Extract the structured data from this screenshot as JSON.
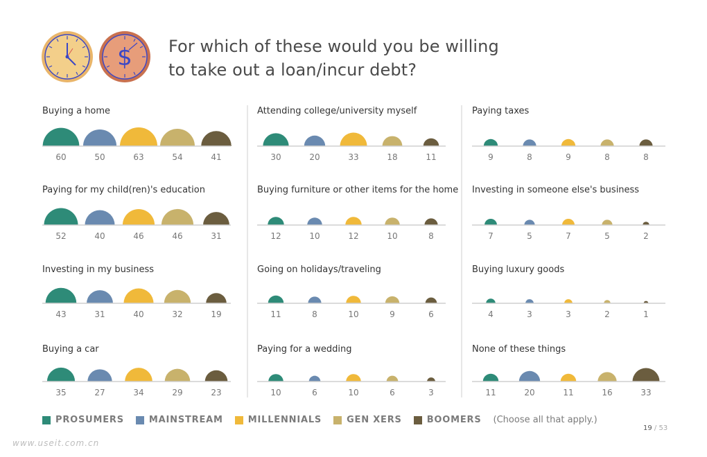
{
  "title": "For which of these would you be willing\nto take out a loan/incur debt?",
  "icons": [
    "clock-icon",
    "dollar-icon"
  ],
  "colors": {
    "prosumers": "#2e8b78",
    "mainstream": "#6a8ab0",
    "millennials": "#f0b93a",
    "genxers": "#c8b26c",
    "boomers": "#6b5d3f",
    "axis": "#cfcfcf"
  },
  "chart_data": {
    "type": "bar",
    "series_names": [
      "PROSUMERS",
      "MAINSTREAM",
      "MILLENNIALS",
      "GEN XERS",
      "BOOMERS"
    ],
    "panels": [
      {
        "title": "Buying a home",
        "values": [
          60,
          50,
          63,
          54,
          41
        ]
      },
      {
        "title": "Paying for my child(ren)'s education",
        "values": [
          52,
          40,
          46,
          46,
          31
        ]
      },
      {
        "title": "Investing in my business",
        "values": [
          43,
          31,
          40,
          32,
          19
        ]
      },
      {
        "title": "Buying a car",
        "values": [
          35,
          27,
          34,
          29,
          23
        ]
      },
      {
        "title": "Attending college/university myself",
        "values": [
          30,
          20,
          33,
          18,
          11
        ]
      },
      {
        "title": "Buying furniture or other items for the home",
        "values": [
          12,
          10,
          12,
          10,
          8
        ]
      },
      {
        "title": "Going on holidays/traveling",
        "values": [
          11,
          8,
          10,
          9,
          6
        ]
      },
      {
        "title": "Paying for a wedding",
        "values": [
          10,
          6,
          10,
          6,
          3
        ]
      },
      {
        "title": "Paying taxes",
        "values": [
          9,
          8,
          9,
          8,
          8
        ]
      },
      {
        "title": "Investing in someone else's business",
        "values": [
          7,
          5,
          7,
          5,
          2
        ]
      },
      {
        "title": "Buying luxury goods",
        "values": [
          4,
          3,
          3,
          2,
          1
        ]
      },
      {
        "title": "None of these things",
        "values": [
          11,
          20,
          11,
          16,
          33
        ]
      }
    ]
  },
  "legend": {
    "items": [
      {
        "label": "PROSUMERS",
        "color_key": "prosumers"
      },
      {
        "label": "MAINSTREAM",
        "color_key": "mainstream"
      },
      {
        "label": "MILLENNIALS",
        "color_key": "millennials"
      },
      {
        "label": "GEN XERS",
        "color_key": "genxers"
      },
      {
        "label": "BOOMERS",
        "color_key": "boomers"
      }
    ],
    "note": "(Choose all that apply.)"
  },
  "page": {
    "current": "19",
    "total": "53"
  },
  "watermark": "www.useit.com.cn"
}
